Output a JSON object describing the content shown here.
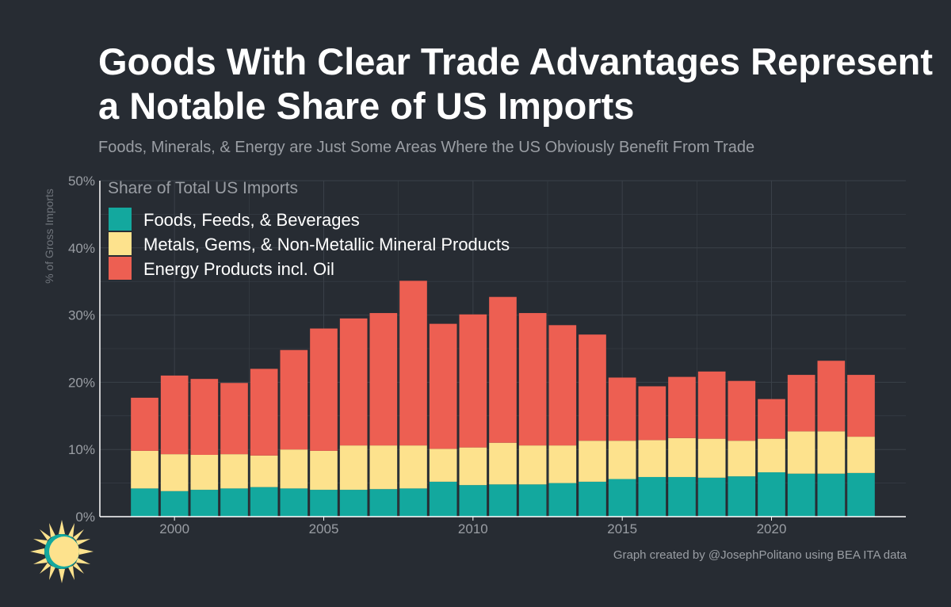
{
  "header": {
    "title": "Goods With Clear Trade Advantages Represent a Notable Share of US Imports",
    "subtitle": "Foods, Minerals, & Energy are Just Some Areas Where the US Obviously Benefit From Trade"
  },
  "footer": {
    "caption": "Graph created by @JosephPolitano using BEA ITA data"
  },
  "logo": {
    "icon": "sun-logo-icon"
  },
  "colors": {
    "background": "#272c33",
    "grid": "#3a4048",
    "axis": "#ffffff",
    "text_muted": "#9a9ea4"
  },
  "chart_data": {
    "type": "bar",
    "stacked": true,
    "title": "Share of Total US Imports",
    "xlabel": "",
    "ylabel": "% of Gross Imports",
    "ylim": [
      0,
      50
    ],
    "yticks": [
      0,
      10,
      20,
      30,
      40,
      50
    ],
    "ytick_labels": [
      "0%",
      "10%",
      "20%",
      "30%",
      "40%",
      "50%"
    ],
    "xticks": [
      2000,
      2005,
      2010,
      2015,
      2020
    ],
    "xtick_labels": [
      "2000",
      "2005",
      "2010",
      "2015",
      "2020"
    ],
    "xlim": [
      1997.5,
      2024.5
    ],
    "legend_position": "top-left",
    "categories": [
      1999,
      2000,
      2001,
      2002,
      2003,
      2004,
      2005,
      2006,
      2007,
      2008,
      2009,
      2010,
      2011,
      2012,
      2013,
      2014,
      2015,
      2016,
      2017,
      2018,
      2019,
      2020,
      2021,
      2022,
      2023
    ],
    "series": [
      {
        "name": "Foods, Feeds, & Beverages",
        "color": "#13a89e",
        "values": [
          4.2,
          3.8,
          4.0,
          4.2,
          4.4,
          4.2,
          4.0,
          4.0,
          4.1,
          4.2,
          5.2,
          4.7,
          4.8,
          4.8,
          5.0,
          5.2,
          5.6,
          5.9,
          5.9,
          5.8,
          6.0,
          6.6,
          6.4,
          6.4,
          6.5
        ]
      },
      {
        "name": "Metals, Gems, & Non-Metallic Mineral Products",
        "color": "#fde28d",
        "values": [
          5.6,
          5.5,
          5.2,
          5.1,
          4.7,
          5.8,
          5.8,
          6.6,
          6.5,
          6.4,
          4.9,
          5.6,
          6.2,
          5.8,
          5.6,
          6.1,
          5.7,
          5.5,
          5.8,
          5.8,
          5.3,
          5.0,
          6.3,
          6.3,
          5.4
        ]
      },
      {
        "name": "Energy Products incl. Oil",
        "color": "#ed5f52",
        "values": [
          7.9,
          11.7,
          11.3,
          10.6,
          12.9,
          14.8,
          18.2,
          18.9,
          19.7,
          24.5,
          18.6,
          19.8,
          21.7,
          19.7,
          17.9,
          15.8,
          9.4,
          8.0,
          9.1,
          10.0,
          8.9,
          5.9,
          8.4,
          10.5,
          9.2
        ]
      }
    ]
  }
}
